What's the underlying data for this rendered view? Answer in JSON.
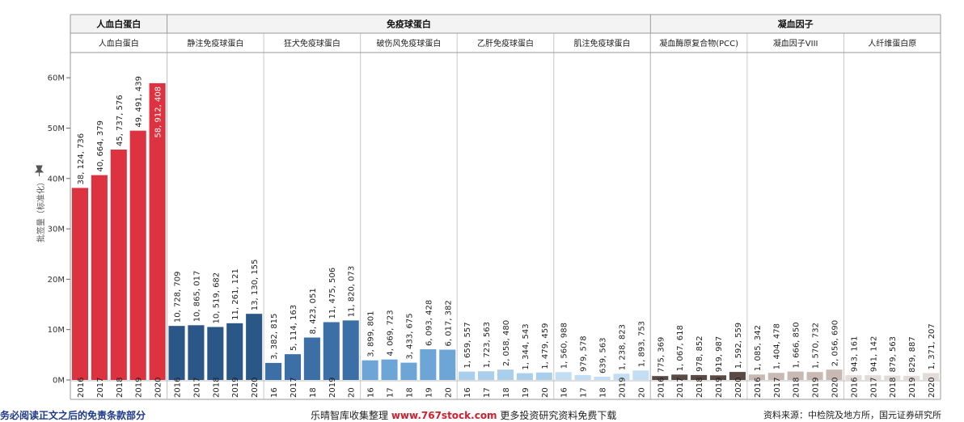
{
  "chart_data": {
    "type": "bar",
    "ylabel": "批签量（标准化）",
    "ylim": [
      0,
      65000000
    ],
    "y_ticks": [
      {
        "value": 0,
        "label": "0M"
      },
      {
        "value": 10000000,
        "label": "10M"
      },
      {
        "value": 20000000,
        "label": "20M"
      },
      {
        "value": 30000000,
        "label": "30M"
      },
      {
        "value": 40000000,
        "label": "40M"
      },
      {
        "value": 50000000,
        "label": "50M"
      },
      {
        "value": 60000000,
        "label": "60M"
      }
    ],
    "grid": false,
    "top_groups": [
      {
        "label": "人血白蛋白",
        "panels": 1
      },
      {
        "label": "免疫球蛋白",
        "panels": 5
      },
      {
        "label": "凝血因子",
        "panels": 3
      }
    ],
    "panels": [
      {
        "label": "人血白蛋白",
        "color": "#dd3340",
        "categories": [
          "2016",
          "2017",
          "2018",
          "2019",
          "2020"
        ],
        "values": [
          38124736,
          40664379,
          45737576,
          49491439,
          58912408
        ],
        "value_labels": [
          "38, 124, 736",
          "40, 664, 379",
          "45, 737, 576",
          "49, 491, 439",
          "58, 912, 408"
        ],
        "inside_last": true
      },
      {
        "label": "静注免疫球蛋白",
        "color": "#2b5787",
        "categories": [
          "2016",
          "2017",
          "2018",
          "2019",
          "2020"
        ],
        "values": [
          10728709,
          10865017,
          10519682,
          11261121,
          13130155
        ],
        "value_labels": [
          "10, 728, 709",
          "10, 865, 017",
          "10, 519, 682",
          "11, 261, 121",
          "13, 130, 155"
        ]
      },
      {
        "label": "狂犬免疫球蛋白",
        "color": "#3b6fa6",
        "categories": [
          "16",
          "2017",
          "18",
          "2019",
          "20"
        ],
        "values": [
          3382815,
          5114163,
          8423051,
          11475506,
          11820073
        ],
        "value_labels": [
          "3, 382, 815",
          "5, 114, 163",
          "8, 423, 051",
          "11, 475, 506",
          "11, 820, 073"
        ]
      },
      {
        "label": "破伤风免疫球蛋白",
        "color": "#6da5d6",
        "categories": [
          "16",
          "17",
          "18",
          "19",
          "20"
        ],
        "values": [
          3899801,
          4069723,
          3433675,
          6093428,
          6017382
        ],
        "value_labels": [
          "3, 899, 801",
          "4, 069, 723",
          "3, 433, 675",
          "6, 093, 428",
          "6, 017, 382"
        ]
      },
      {
        "label": "乙肝免疫球蛋白",
        "color": "#a9cfec",
        "categories": [
          "16",
          "17",
          "18",
          "19",
          "20"
        ],
        "values": [
          1659557,
          1723563,
          2058480,
          1344543,
          1479459
        ],
        "value_labels": [
          "1, 659, 557",
          "1, 723, 563",
          "2, 058, 480",
          "1, 344, 543",
          "1, 479, 459"
        ]
      },
      {
        "label": "肌注免疫球蛋白",
        "color": "#c3def3",
        "categories": [
          "16",
          "17",
          "18",
          "2019",
          "20"
        ],
        "values": [
          1560988,
          979578,
          639563,
          1238823,
          1893753
        ],
        "value_labels": [
          "1, 560, 988",
          "979, 578",
          "639, 563",
          "1, 238, 823",
          "1, 893, 753"
        ]
      },
      {
        "label": "凝血酶原复合物(PCC)",
        "color": "#5a4a46",
        "categories": [
          "2016",
          "2017",
          "2018",
          "2019",
          "2020"
        ],
        "values": [
          775369,
          1067618,
          978852,
          919987,
          1592559
        ],
        "value_labels": [
          "775, 369",
          "1, 067, 618",
          "978, 852",
          "919, 987",
          "1, 592, 559"
        ]
      },
      {
        "label": "凝血因子VIII",
        "color": "#c9b9b4",
        "categories": [
          "2016",
          "2017",
          "2018",
          "2019",
          "2020"
        ],
        "values": [
          1085342,
          1404478,
          1666850,
          1570732,
          2056690
        ],
        "value_labels": [
          "1, 085, 342",
          "1, 404, 478",
          "1, 666, 850",
          "1, 570, 732",
          "2, 056, 690"
        ]
      },
      {
        "label": "人纤维蛋白原",
        "color": "#e3dbd8",
        "categories": [
          "2016",
          "2017",
          "2018",
          "2019",
          "2020"
        ],
        "values": [
          943161,
          941142,
          879563,
          829887,
          1371207
        ],
        "value_labels": [
          "943, 161",
          "941, 142",
          "879, 563",
          "829, 887",
          "1, 371, 207"
        ]
      }
    ]
  },
  "footer": {
    "left": "务必阅读正文之后的免责条款部分",
    "center_prefix": "乐晴智库收集整理 ",
    "center_site": "www.767stock.com",
    "center_suffix": " 更多投资研究资料免费下载",
    "right": "资料来源：中检院及地方所，国元证券研究所"
  }
}
